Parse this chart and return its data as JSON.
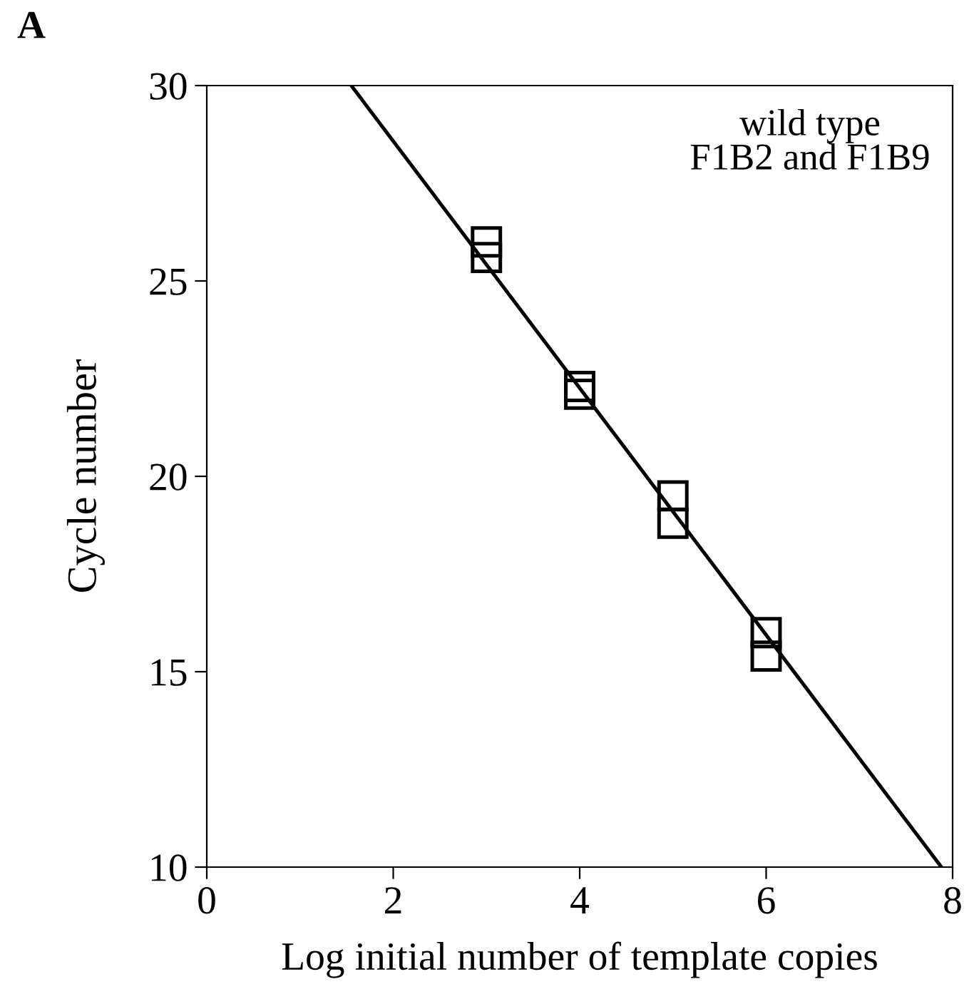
{
  "chart_data": {
    "type": "scatter",
    "title": "A",
    "xlabel": "Log initial number of template copies",
    "ylabel": "Cycle number",
    "annotations": [
      "wild type\nF1B2 and F1B9"
    ],
    "xlim": [
      0,
      8
    ],
    "ylim": [
      10,
      30
    ],
    "xticks": [
      0,
      2,
      4,
      6,
      8
    ],
    "yticks": [
      10,
      15,
      20,
      25,
      30
    ],
    "grid": false,
    "legend": false,
    "marker": "square",
    "series": [
      {
        "color": "#000000",
        "x": [
          3,
          3,
          4,
          4,
          5,
          5,
          6,
          6
        ],
        "values": [
          26.0,
          25.6,
          22.3,
          22.1,
          19.5,
          18.8,
          16.0,
          15.4
        ]
      },
      {
        "type": "line",
        "color": "#000000",
        "x": [
          1.55,
          7.88
        ],
        "values": [
          30,
          10
        ],
        "marker": "none",
        "line_style": "solid"
      }
    ]
  }
}
